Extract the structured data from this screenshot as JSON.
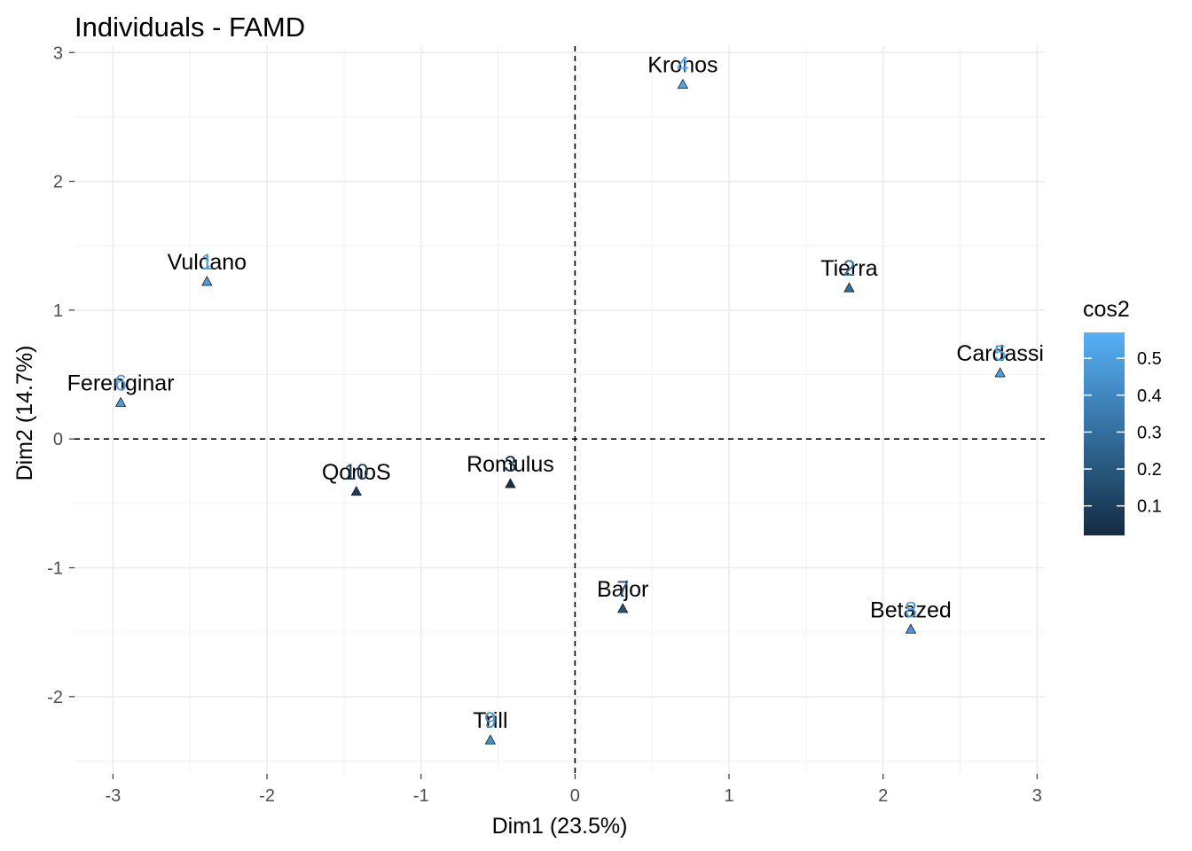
{
  "chart_data": {
    "type": "scatter",
    "title": "Individuals - FAMD",
    "xlabel": "Dim1 (23.5%)",
    "ylabel": "Dim2 (14.7%)",
    "xlim": [
      -3.25,
      3.05
    ],
    "ylim": [
      -2.6,
      3.05
    ],
    "xticks": [
      -3,
      -2,
      -1,
      0,
      1,
      2,
      3
    ],
    "yticks": [
      -2,
      -1,
      0,
      1,
      2,
      3
    ],
    "grid": true,
    "reference_lines": {
      "x": 0,
      "y": 0,
      "style": "dashed"
    },
    "color_by": "cos2",
    "points": [
      {
        "index": "1",
        "label": "Vulcano",
        "x": -2.39,
        "y": 1.22,
        "cos2": 0.49
      },
      {
        "index": "2",
        "label": "Tierra",
        "x": 1.78,
        "y": 1.17,
        "cos2": 0.3
      },
      {
        "index": "3",
        "label": "Romulus",
        "x": -0.42,
        "y": -0.35,
        "cos2": 0.04
      },
      {
        "index": "4",
        "label": "Kronos",
        "x": 0.7,
        "y": 2.75,
        "cos2": 0.52
      },
      {
        "index": "5",
        "label": "Cardassi",
        "x": 2.76,
        "y": 0.51,
        "cos2": 0.5
      },
      {
        "index": "6",
        "label": "Ferenginar",
        "x": -2.95,
        "y": 0.28,
        "cos2": 0.48
      },
      {
        "index": "7",
        "label": "Bajor",
        "x": 0.31,
        "y": -1.32,
        "cos2": 0.18
      },
      {
        "index": "8",
        "label": "Betazed",
        "x": 2.18,
        "y": -1.48,
        "cos2": 0.47
      },
      {
        "index": "9",
        "label": "Trill",
        "x": -0.55,
        "y": -2.34,
        "cos2": 0.44
      },
      {
        "index": "10",
        "label": "QonoS",
        "x": -1.42,
        "y": -0.41,
        "cos2": 0.1
      }
    ],
    "legend": {
      "title": "cos2",
      "ticks": [
        "0.1",
        "0.2",
        "0.3",
        "0.4",
        "0.5"
      ],
      "range": [
        0.02,
        0.57
      ],
      "color_low": "#132b43",
      "color_high": "#56b1f7",
      "placement": "right"
    }
  }
}
